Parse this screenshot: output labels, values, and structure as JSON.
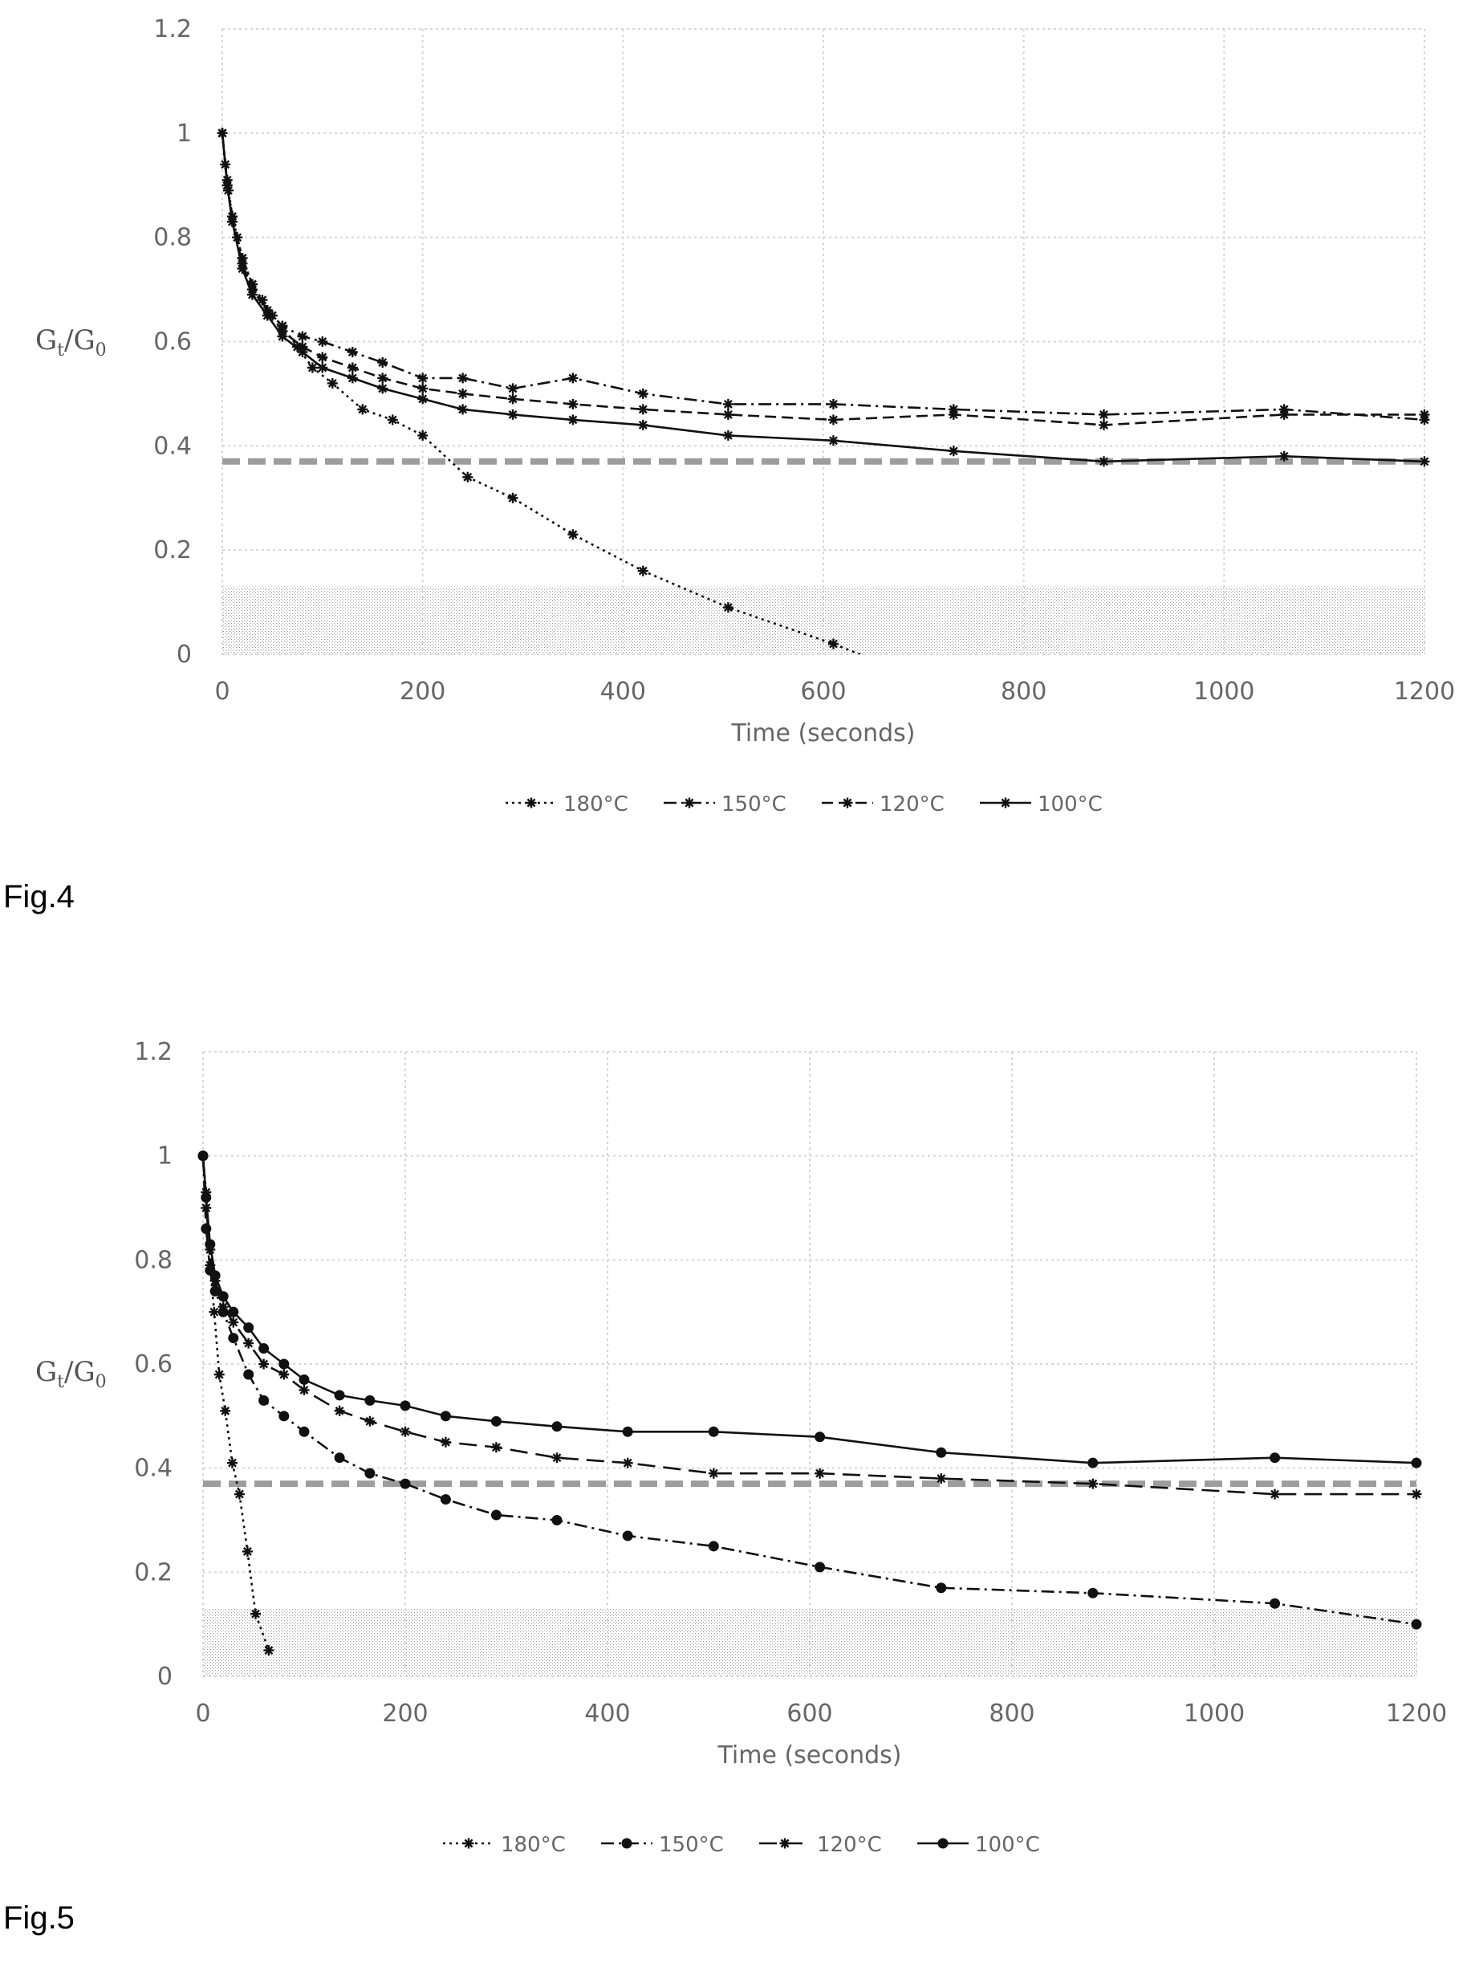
{
  "figures": [
    {
      "label": "Fig.4",
      "chart_data": {
        "type": "line",
        "xlabel": "Time (seconds)",
        "ylabel_main": "G",
        "ylabel_sub_t": "t",
        "ylabel_sep": "/G",
        "ylabel_sub_0": "0",
        "xlim": [
          0,
          1200
        ],
        "ylim": [
          0,
          1.2
        ],
        "x_ticks": [
          "0",
          "200",
          "400",
          "600",
          "800",
          "1000",
          "1200"
        ],
        "y_ticks": [
          "0",
          "0.2",
          "0.4",
          "0.6",
          "0.8",
          "1",
          "1.2"
        ],
        "grid": true,
        "legend_position": "bottom",
        "reference_line": 0.37,
        "shaded_band": [
          0,
          0.13
        ],
        "series": [
          {
            "name": "180°C",
            "dash": "dotted",
            "marker": "star",
            "x": [
              0,
              3,
              6,
              10,
              15,
              20,
              30,
              40,
              50,
              60,
              75,
              90,
              110,
              140,
              170,
              200,
              245,
              290,
              350,
              420,
              505,
              610,
              650
            ],
            "y": [
              1,
              0.94,
              0.89,
              0.84,
              0.8,
              0.76,
              0.71,
              0.68,
              0.65,
              0.63,
              0.59,
              0.55,
              0.52,
              0.47,
              0.45,
              0.42,
              0.34,
              0.3,
              0.23,
              0.16,
              0.09,
              0.02,
              -0.01
            ]
          },
          {
            "name": "150°C",
            "dash": "dashdot",
            "marker": "star",
            "x": [
              0,
              5,
              10,
              20,
              30,
              45,
              60,
              80,
              100,
              130,
              160,
              200,
              240,
              290,
              350,
              420,
              505,
              610,
              730,
              880,
              1060,
              1200
            ],
            "y": [
              1,
              0.91,
              0.84,
              0.76,
              0.71,
              0.66,
              0.63,
              0.61,
              0.6,
              0.58,
              0.56,
              0.53,
              0.53,
              0.51,
              0.53,
              0.5,
              0.48,
              0.48,
              0.47,
              0.46,
              0.47,
              0.45
            ]
          },
          {
            "name": "120°C",
            "dash": "dashed",
            "marker": "star",
            "x": [
              0,
              5,
              10,
              20,
              30,
              45,
              60,
              80,
              100,
              130,
              160,
              200,
              240,
              290,
              350,
              420,
              505,
              610,
              730,
              880,
              1060,
              1200
            ],
            "y": [
              1,
              0.9,
              0.83,
              0.75,
              0.7,
              0.66,
              0.62,
              0.59,
              0.57,
              0.55,
              0.53,
              0.51,
              0.5,
              0.49,
              0.48,
              0.47,
              0.46,
              0.45,
              0.46,
              0.44,
              0.46,
              0.46
            ]
          },
          {
            "name": "100°C",
            "dash": "solid",
            "marker": "star",
            "x": [
              0,
              5,
              10,
              20,
              30,
              45,
              60,
              80,
              100,
              130,
              160,
              200,
              240,
              290,
              350,
              420,
              505,
              610,
              730,
              880,
              1060,
              1200
            ],
            "y": [
              1,
              0.9,
              0.83,
              0.74,
              0.69,
              0.65,
              0.61,
              0.58,
              0.55,
              0.53,
              0.51,
              0.49,
              0.47,
              0.46,
              0.45,
              0.44,
              0.42,
              0.41,
              0.39,
              0.37,
              0.38,
              0.37
            ]
          }
        ]
      }
    },
    {
      "label": "Fig.5",
      "chart_data": {
        "type": "line",
        "xlabel": "Time (seconds)",
        "ylabel_main": "G",
        "ylabel_sub_t": "t",
        "ylabel_sep": "/G",
        "ylabel_sub_0": "0",
        "xlim": [
          0,
          1200
        ],
        "ylim": [
          0,
          1.2
        ],
        "x_ticks": [
          "0",
          "200",
          "400",
          "600",
          "800",
          "1000",
          "1200"
        ],
        "y_ticks": [
          "0",
          "0.2",
          "0.4",
          "0.6",
          "0.8",
          "1",
          "1.2"
        ],
        "grid": true,
        "legend_position": "bottom",
        "reference_line": 0.37,
        "shaded_band": [
          0,
          0.13
        ],
        "series": [
          {
            "name": "180°C",
            "dash": "dotted",
            "marker": "star",
            "x": [
              0,
              3,
              7,
              11,
              16,
              22,
              29,
              36,
              44,
              52,
              65
            ],
            "y": [
              1,
              0.93,
              0.79,
              0.7,
              0.58,
              0.51,
              0.41,
              0.35,
              0.24,
              0.12,
              0.05
            ]
          },
          {
            "name": "150°C",
            "dash": "dashdot",
            "marker": "dot",
            "x": [
              0,
              3,
              7,
              12,
              20,
              30,
              45,
              60,
              80,
              100,
              135,
              165,
              200,
              240,
              290,
              350,
              420,
              505,
              610,
              730,
              880,
              1060,
              1200
            ],
            "y": [
              1,
              0.86,
              0.78,
              0.74,
              0.7,
              0.65,
              0.58,
              0.53,
              0.5,
              0.47,
              0.42,
              0.39,
              0.37,
              0.34,
              0.31,
              0.3,
              0.27,
              0.25,
              0.21,
              0.17,
              0.16,
              0.14,
              0.1
            ]
          },
          {
            "name": "120°C",
            "dash": "longdash",
            "marker": "star",
            "x": [
              0,
              3,
              7,
              12,
              20,
              30,
              45,
              60,
              80,
              100,
              135,
              165,
              200,
              240,
              290,
              350,
              420,
              505,
              610,
              730,
              880,
              1060,
              1200
            ],
            "y": [
              1,
              0.9,
              0.82,
              0.76,
              0.71,
              0.68,
              0.64,
              0.6,
              0.58,
              0.55,
              0.51,
              0.49,
              0.47,
              0.45,
              0.44,
              0.42,
              0.41,
              0.39,
              0.39,
              0.38,
              0.37,
              0.35,
              0.35
            ]
          },
          {
            "name": "100°C",
            "dash": "solid",
            "marker": "dot",
            "x": [
              0,
              3,
              7,
              12,
              20,
              30,
              45,
              60,
              80,
              100,
              135,
              165,
              200,
              240,
              290,
              350,
              420,
              505,
              610,
              730,
              880,
              1060,
              1200
            ],
            "y": [
              1,
              0.92,
              0.83,
              0.77,
              0.73,
              0.7,
              0.67,
              0.63,
              0.6,
              0.57,
              0.54,
              0.53,
              0.52,
              0.5,
              0.49,
              0.48,
              0.47,
              0.47,
              0.46,
              0.43,
              0.41,
              0.42,
              0.41
            ]
          }
        ]
      }
    }
  ]
}
